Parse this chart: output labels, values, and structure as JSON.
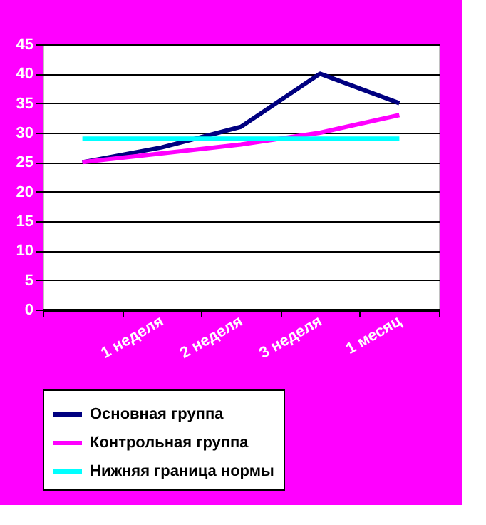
{
  "chart_data": {
    "type": "line",
    "categories": [
      null,
      "1 неделя",
      "2 неделя",
      "3 неделя",
      "1 месяц"
    ],
    "series": [
      {
        "name": "Основная группа",
        "color": "#000080",
        "values": [
          25,
          27.5,
          31,
          40,
          35
        ]
      },
      {
        "name": "Контрольная группа",
        "color": "#ff00ff",
        "values": [
          25,
          26.5,
          28,
          30,
          33
        ]
      },
      {
        "name": "Нижняя граница нормы",
        "color": "#00ffff",
        "values": [
          29,
          29,
          29,
          29,
          29
        ]
      }
    ],
    "ylim": [
      0,
      45
    ],
    "yticks": [
      0,
      5,
      10,
      15,
      20,
      25,
      30,
      35,
      40,
      45
    ],
    "grid": "y",
    "legend": "bottom",
    "marker": "none",
    "line_style": "solid"
  }
}
